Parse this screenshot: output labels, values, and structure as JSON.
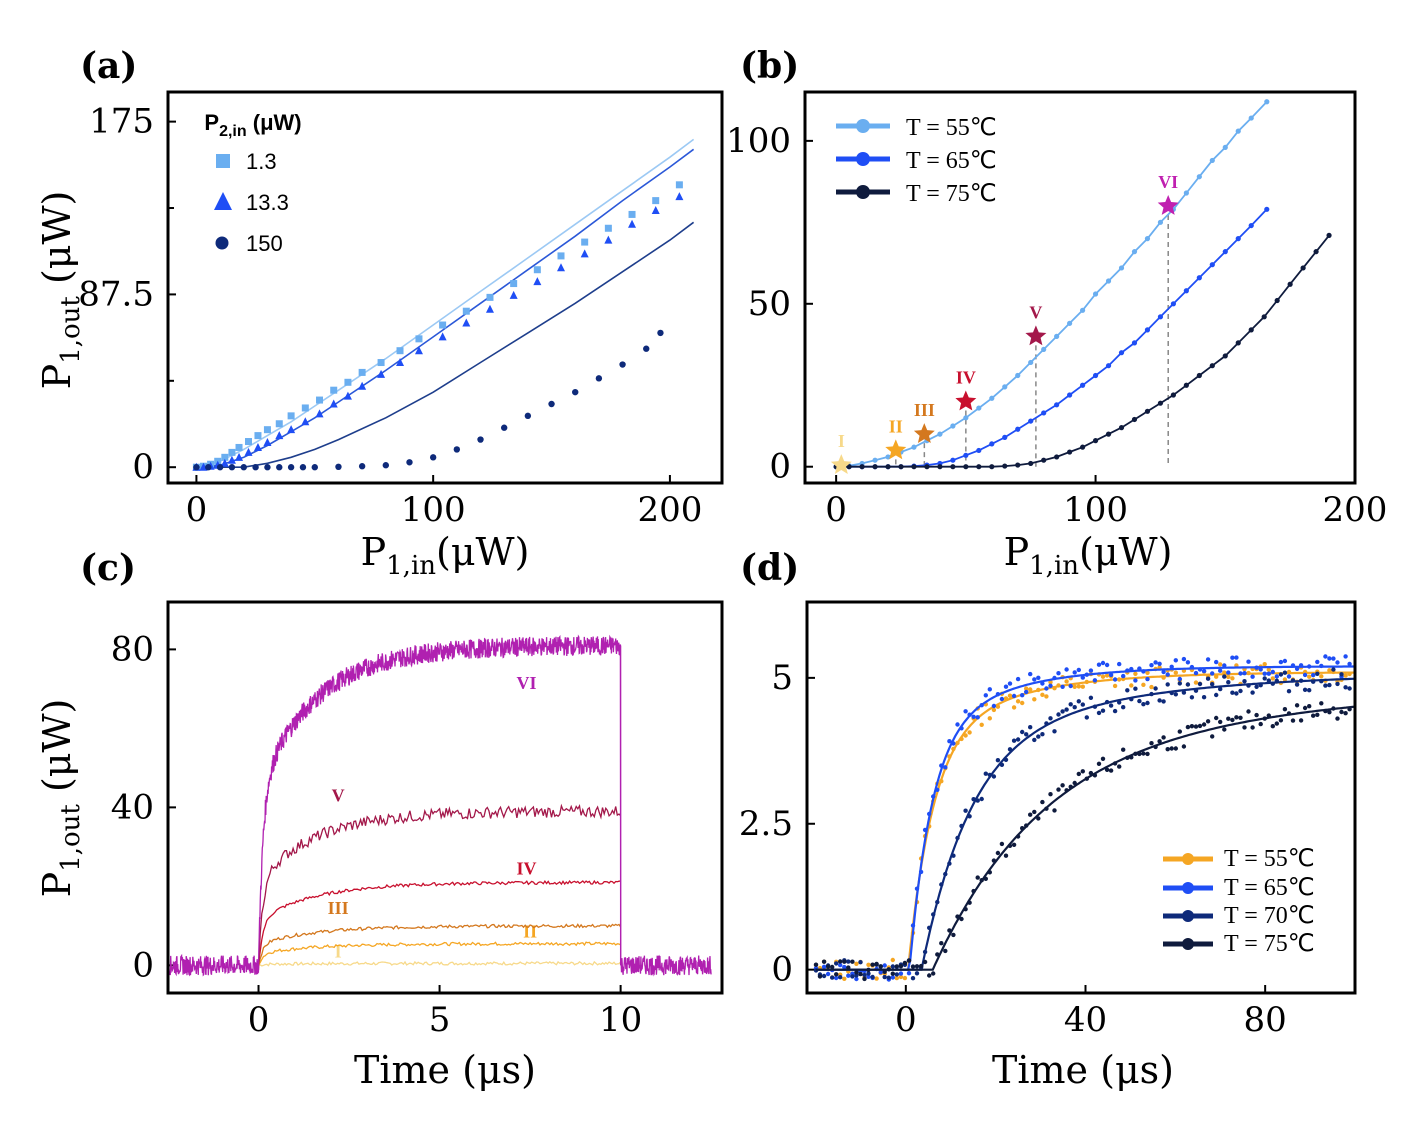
{
  "colors": {
    "light_blue": "#6aaef0",
    "mid_blue": "#1f4ef5",
    "navy": "#0e2a7a",
    "dark_navy": "#0f1b3d",
    "orange": "#f5a623",
    "magenta": "#b020b0",
    "crimson": "#a3184a",
    "red": "#c8102e",
    "burnt_orange": "#d4781e",
    "pale_yellow": "#f7d98a"
  },
  "panels": {
    "a": {
      "label": "(a)"
    },
    "b": {
      "label": "(b)"
    },
    "c": {
      "label": "(c)"
    },
    "d": {
      "label": "(d)"
    }
  },
  "chart_data": [
    {
      "id": "a",
      "type": "scatter",
      "title": "",
      "xlabel": "P1,in(μW)",
      "xlabel_parts": [
        "P",
        "1,in",
        "(μW)"
      ],
      "ylabel": "P1,out (μW)",
      "ylabel_parts": [
        "P",
        "1,out",
        " (μW)"
      ],
      "xlim": [
        -12,
        222
      ],
      "ylim": [
        -8,
        190
      ],
      "xticks": [
        0,
        100,
        200
      ],
      "xticklabels": [
        "0",
        "100",
        "200"
      ],
      "yticks": [
        0,
        87.5,
        175
      ],
      "yticklabels": [
        "0",
        "87.5",
        "175"
      ],
      "yminor": [
        43.75,
        131.25
      ],
      "legend": {
        "title": "P2,in (μW)",
        "title_parts": [
          "P",
          "2,in",
          " (μW)"
        ],
        "entries": [
          "1.3",
          "13.3",
          "150"
        ]
      },
      "series": [
        {
          "name": "1.3",
          "marker": "square",
          "color": "#6aaef0",
          "x": [
            0,
            3,
            6,
            9,
            12,
            15,
            18,
            22,
            26,
            30,
            35,
            40,
            46,
            52,
            58,
            64,
            70,
            78,
            86,
            94,
            104,
            114,
            124,
            134,
            144,
            154,
            164,
            174,
            184,
            194,
            204
          ],
          "y": [
            0,
            0.5,
            1.5,
            3,
            5,
            7.5,
            10,
            13,
            16,
            19,
            22,
            26,
            30,
            34,
            39,
            43,
            48,
            53,
            59,
            65,
            72,
            79,
            86,
            93,
            100,
            107,
            114,
            121,
            128,
            135,
            143
          ]
        },
        {
          "name": "13.3",
          "marker": "triangle",
          "color": "#1f4ef5",
          "x": [
            0,
            3,
            6,
            9,
            12,
            15,
            18,
            22,
            26,
            30,
            35,
            40,
            46,
            52,
            58,
            64,
            70,
            78,
            86,
            94,
            104,
            114,
            124,
            134,
            144,
            154,
            164,
            174,
            184,
            194,
            204
          ],
          "y": [
            0,
            0,
            0.5,
            1,
            2,
            3.5,
            5,
            7.5,
            10,
            12.5,
            16,
            19,
            23,
            27,
            32,
            36,
            41,
            47,
            53,
            59,
            66,
            73,
            80,
            87,
            94,
            101,
            108,
            115,
            123,
            130,
            137
          ]
        },
        {
          "name": "150",
          "marker": "circle",
          "color": "#0e2a7a",
          "x": [
            0,
            5,
            10,
            15,
            20,
            25,
            30,
            35,
            40,
            45,
            50,
            60,
            70,
            80,
            90,
            100,
            110,
            120,
            130,
            140,
            150,
            160,
            170,
            180,
            190,
            196
          ],
          "y": [
            0,
            0,
            0,
            0,
            0,
            0,
            0,
            0,
            0,
            0,
            0,
            0.2,
            0.5,
            1,
            2.5,
            5,
            9,
            14,
            20,
            26,
            32,
            38,
            45,
            52,
            60,
            68
          ]
        }
      ],
      "fits": [
        {
          "color": "#9cc9f4",
          "x": [
            0,
            10,
            20,
            30,
            40,
            50,
            60,
            80,
            100,
            120,
            140,
            160,
            180,
            200,
            210
          ],
          "y": [
            0,
            3,
            9,
            16,
            23,
            31,
            39,
            55,
            72,
            89,
            106,
            123,
            140,
            157,
            166
          ]
        },
        {
          "color": "#2b58d8",
          "x": [
            0,
            10,
            20,
            30,
            40,
            50,
            60,
            80,
            100,
            120,
            140,
            160,
            180,
            200,
            210
          ],
          "y": [
            0,
            1,
            5,
            11,
            18,
            25,
            33,
            49,
            66,
            83,
            100,
            117,
            135,
            152,
            161
          ]
        },
        {
          "color": "#1e3e8c",
          "x": [
            0,
            20,
            30,
            40,
            50,
            60,
            80,
            100,
            120,
            140,
            160,
            180,
            200,
            210
          ],
          "y": [
            0,
            0,
            2,
            5,
            9,
            14,
            25,
            38,
            53,
            68,
            83,
            99,
            115,
            124
          ]
        }
      ]
    },
    {
      "id": "b",
      "type": "line",
      "title": "",
      "xlabel": "P1,in(μW)",
      "xlabel_parts": [
        "P",
        "1,in",
        "(μW)"
      ],
      "ylabel": "",
      "xlim": [
        -12,
        200
      ],
      "ylim": [
        -5,
        115
      ],
      "xticks": [
        0,
        100,
        200
      ],
      "xticklabels": [
        "0",
        "100",
        "200"
      ],
      "yticks": [
        0,
        50,
        100
      ],
      "yticklabels": [
        "0",
        "50",
        "100"
      ],
      "legend": {
        "entries": [
          "T = 55℃",
          "T = 65℃",
          "T = 75℃"
        ]
      },
      "series": [
        {
          "name": "T = 55℃",
          "color": "#6aaef0",
          "x": [
            0,
            5,
            10,
            15,
            20,
            25,
            30,
            35,
            40,
            45,
            50,
            55,
            60,
            65,
            70,
            75,
            80,
            85,
            90,
            95,
            100,
            105,
            110,
            115,
            120,
            125,
            130,
            135,
            140,
            145,
            150,
            155,
            160,
            166
          ],
          "y": [
            0,
            0.3,
            1,
            2,
            3,
            4.5,
            6,
            8,
            10,
            12.5,
            15,
            18,
            21,
            24.5,
            28,
            32,
            36,
            40,
            44,
            48,
            53,
            57,
            61,
            66,
            70,
            75,
            79,
            84,
            89,
            94,
            98,
            103,
            107,
            112
          ]
        },
        {
          "name": "T = 65℃",
          "color": "#1f4ef5",
          "x": [
            0,
            5,
            10,
            15,
            20,
            25,
            30,
            35,
            40,
            45,
            50,
            55,
            60,
            65,
            70,
            75,
            80,
            85,
            90,
            95,
            100,
            105,
            110,
            115,
            120,
            125,
            130,
            135,
            140,
            145,
            150,
            155,
            160,
            166
          ],
          "y": [
            0,
            0,
            0,
            0,
            0,
            0,
            0.2,
            0.5,
            1,
            2,
            3.5,
            5,
            7,
            9,
            11.5,
            14,
            16.5,
            19,
            22,
            25,
            28,
            31,
            35,
            38,
            42,
            46,
            50,
            54,
            58,
            62,
            66,
            70,
            74,
            79
          ]
        },
        {
          "name": "T = 75℃",
          "color": "#0f1b3d",
          "x": [
            0,
            5,
            10,
            15,
            20,
            25,
            30,
            35,
            40,
            45,
            50,
            55,
            60,
            65,
            70,
            75,
            80,
            85,
            90,
            95,
            100,
            105,
            110,
            115,
            120,
            125,
            130,
            135,
            140,
            145,
            150,
            155,
            160,
            165,
            170,
            175,
            180,
            185,
            190
          ],
          "y": [
            0,
            0,
            0,
            0,
            0,
            0,
            0,
            0,
            0,
            0,
            0,
            0,
            0,
            0.2,
            0.5,
            1,
            2,
            3,
            4.5,
            6,
            8,
            10,
            12,
            14.5,
            17,
            19.5,
            22,
            25,
            28,
            31,
            34,
            38,
            42,
            46,
            51,
            56,
            61,
            66,
            71
          ]
        }
      ],
      "stars": [
        {
          "label": "I",
          "x": 2,
          "y": 0.5,
          "color": "#f7d98a"
        },
        {
          "label": "II",
          "x": 23,
          "y": 5,
          "color": "#f5a623"
        },
        {
          "label": "III",
          "x": 34,
          "y": 10,
          "color": "#d4781e"
        },
        {
          "label": "IV",
          "x": 50,
          "y": 20,
          "color": "#c8102e"
        },
        {
          "label": "V",
          "x": 77,
          "y": 40,
          "color": "#a3184a"
        },
        {
          "label": "VI",
          "x": 128,
          "y": 80,
          "color": "#c020b0"
        }
      ]
    },
    {
      "id": "c",
      "type": "line",
      "title": "",
      "xlabel": "Time (μs)",
      "ylabel": "P1,out (μW)",
      "ylabel_parts": [
        "P",
        "1,out",
        " (μW)"
      ],
      "xlim": [
        -2.5,
        12.8
      ],
      "ylim": [
        -7,
        92
      ],
      "xticks": [
        0,
        5,
        10
      ],
      "xticklabels": [
        "0",
        "5",
        "10"
      ],
      "yticks": [
        0,
        40,
        80
      ],
      "yticklabels": [
        "0",
        "40",
        "80"
      ],
      "pulse_start": 0,
      "pulse_end": 10,
      "series": [
        {
          "name": "I",
          "level": 0.5,
          "color": "#f7d98a",
          "label_x": 2.2,
          "label_y": 2
        },
        {
          "name": "II",
          "level": 5.5,
          "color": "#f5a623",
          "label_x": 7.5,
          "label_y": 7
        },
        {
          "name": "III",
          "level": 10,
          "color": "#d4781e",
          "label_x": 2.2,
          "label_y": 13
        },
        {
          "name": "IV",
          "level": 21,
          "color": "#c8102e",
          "label_x": 7.4,
          "label_y": 23
        },
        {
          "name": "V",
          "level": 39,
          "color": "#a3184a",
          "label_x": 2.2,
          "label_y": 41.5
        },
        {
          "name": "VI",
          "level": 81,
          "color": "#b020b0",
          "label_x": 7.4,
          "label_y": 70
        }
      ]
    },
    {
      "id": "d",
      "type": "scatter",
      "title": "",
      "xlabel": "Time (μs)",
      "ylabel": "",
      "xlim": [
        -22,
        100
      ],
      "ylim": [
        -0.4,
        6.3
      ],
      "xticks": [
        0,
        40,
        80
      ],
      "xticklabels": [
        "0",
        "40",
        "80"
      ],
      "yticks": [
        0,
        2.5,
        5
      ],
      "yticklabels": [
        "0",
        "2.5",
        "5"
      ],
      "legend": {
        "entries": [
          "T = 55℃",
          "T = 65℃",
          "T = 70℃",
          "T = 75℃"
        ]
      },
      "series": [
        {
          "name": "T = 55℃",
          "color": "#f5a623",
          "t0": 0.5,
          "tau": 5,
          "sat": 5.1
        },
        {
          "name": "T = 65℃",
          "color": "#1f4ef5",
          "t0": 0.8,
          "tau": 4.5,
          "sat": 5.2
        },
        {
          "name": "T = 70℃",
          "color": "#0e2a7a",
          "t0": 3.5,
          "tau": 10,
          "sat": 5.1
        },
        {
          "name": "T = 75℃",
          "color": "#0f1b3d",
          "t0": 6,
          "tau": 22,
          "sat": 5.0
        }
      ]
    }
  ]
}
